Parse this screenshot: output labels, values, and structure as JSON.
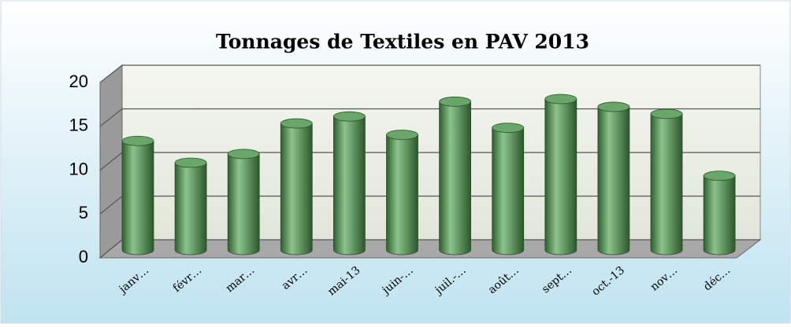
{
  "chart_data": {
    "type": "bar",
    "title": "Tonnages de Textiles en PAV 2013",
    "categories": [
      "janv…",
      "févr…",
      "mar…",
      "avr…",
      "mai-13",
      "juin-…",
      "juil.-…",
      "août…",
      "sept…",
      "oct.-13",
      "nov…",
      "déc…"
    ],
    "values": [
      12.5,
      10,
      11,
      14.5,
      15.3,
      13.2,
      17,
      14,
      17.3,
      16.4,
      15.6,
      8.5
    ],
    "color": "#6aa66a",
    "ylim": [
      0,
      20
    ],
    "yticks": [
      0,
      5,
      10,
      15,
      20
    ],
    "grid": true
  }
}
